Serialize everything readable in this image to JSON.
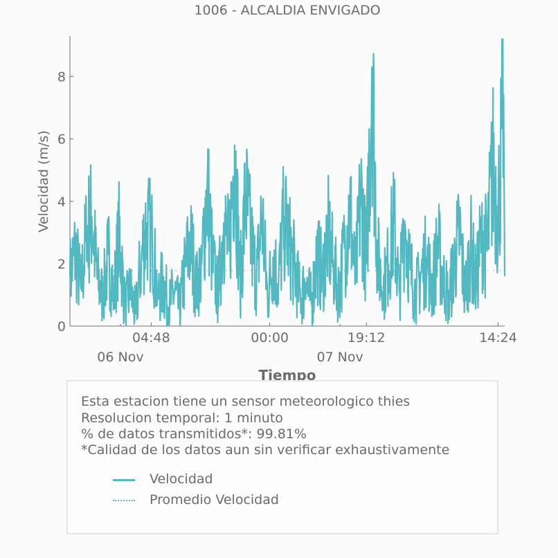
{
  "colors": {
    "series": "#52b8c2",
    "axis": "#6b6b6b",
    "text": "#6b6b6b"
  },
  "chart_data": {
    "type": "line",
    "title": "1006 - ALCALDIA ENVIGADO",
    "xlabel": "Tiempo",
    "ylabel": "Velocidad (m/s)",
    "ylim": [
      0,
      9.3
    ],
    "yticks": [
      0,
      2,
      4,
      6,
      8
    ],
    "xlim_hours": [
      0,
      39.6
    ],
    "xticks": [
      {
        "hour": 7.4,
        "label": "04:48"
      },
      {
        "hour": 18.2,
        "label": "00:00"
      },
      {
        "hour": 27.0,
        "label": "19:12"
      },
      {
        "hour": 39.0,
        "label": "14:24"
      }
    ],
    "xticks_minor": [
      {
        "hour": 4.6,
        "label": "06 Nov"
      },
      {
        "hour": 24.6,
        "label": "07 Nov"
      }
    ],
    "series": [
      {
        "name": "Velocidad",
        "style": "solid",
        "x_hours": [
          0.0,
          0.5,
          1.0,
          1.5,
          2.0,
          2.5,
          3.0,
          3.5,
          4.0,
          4.5,
          5.0,
          5.5,
          6.0,
          6.5,
          7.0,
          7.5,
          8.0,
          8.5,
          9.0,
          9.5,
          10.0,
          10.5,
          11.0,
          11.5,
          12.0,
          12.5,
          13.0,
          13.5,
          14.0,
          14.5,
          15.0,
          15.5,
          16.0,
          16.5,
          17.0,
          17.5,
          18.0,
          18.5,
          19.0,
          19.5,
          20.0,
          20.5,
          21.0,
          21.5,
          22.0,
          22.5,
          23.0,
          23.5,
          24.0,
          24.5,
          25.0,
          25.5,
          26.0,
          26.5,
          27.0,
          27.5,
          28.0,
          28.5,
          29.0,
          29.5,
          30.0,
          30.5,
          31.0,
          31.5,
          32.0,
          32.5,
          33.0,
          33.5,
          34.0,
          34.5,
          35.0,
          35.5,
          36.0,
          36.5,
          37.0,
          37.5,
          38.0,
          38.5,
          39.0,
          39.5
        ],
        "values": [
          1.6,
          2.4,
          1.2,
          2.9,
          3.5,
          1.5,
          0.9,
          2.3,
          1.0,
          3.0,
          0.6,
          1.1,
          0.4,
          2.2,
          3.3,
          2.7,
          1.0,
          1.4,
          0.6,
          1.1,
          0.5,
          1.9,
          2.8,
          1.2,
          2.0,
          4.5,
          2.0,
          1.0,
          3.3,
          2.4,
          5.8,
          1.3,
          4.2,
          2.7,
          1.5,
          3.6,
          0.9,
          2.2,
          1.4,
          3.5,
          2.6,
          1.8,
          0.9,
          1.4,
          0.7,
          2.3,
          1.6,
          3.0,
          1.9,
          1.1,
          2.5,
          3.8,
          1.4,
          4.3,
          2.0,
          8.3,
          2.3,
          1.1,
          2.0,
          3.3,
          1.1,
          3.3,
          1.8,
          1.0,
          1.7,
          2.2,
          1.2,
          2.6,
          1.5,
          0.9,
          2.0,
          3.0,
          1.0,
          2.6,
          1.3,
          3.1,
          2.4,
          5.2,
          3.6,
          7.4
        ]
      },
      {
        "name": "Promedio Velocidad",
        "style": "dotted",
        "x_hours": [
          0.0,
          39.6
        ],
        "values": [
          1.78,
          1.78
        ]
      }
    ],
    "legend_position": "bottom-inside-box"
  },
  "info": {
    "lines": [
      "Esta estacion tiene un sensor meteorologico thies",
      "Resolucion temporal: 1 minuto",
      "% de datos transmitidos*: 99.81%",
      "*Calidad de los datos aun sin verificar exhaustivamente"
    ],
    "legend": [
      {
        "label": "Velocidad"
      },
      {
        "label": "Promedio Velocidad"
      }
    ]
  }
}
